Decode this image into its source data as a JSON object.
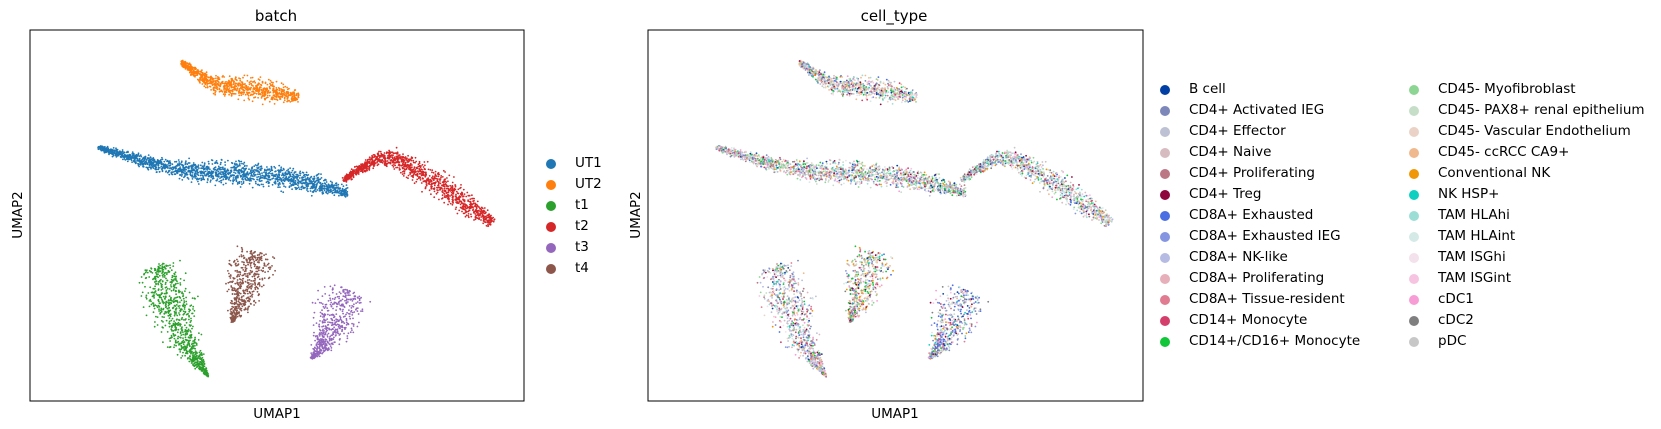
{
  "chart_data": [
    {
      "type": "scatter",
      "title": "batch",
      "xlabel": "UMAP1",
      "ylabel": "UMAP2",
      "grid": false,
      "legend_placement": "right",
      "series": [
        {
          "name": "UT1",
          "color": "#1f77b4",
          "shape": "pearl",
          "points": [
            [
              2.0,
              8.35
            ],
            [
              3.5,
              8.05
            ],
            [
              5.3,
              7.95
            ],
            [
              6.7,
              7.72
            ]
          ]
        },
        {
          "name": "UT2",
          "color": "#ff7f0e",
          "shape": "pearl",
          "points": [
            [
              3.55,
              9.55
            ],
            [
              4.25,
              9.22
            ],
            [
              4.95,
              9.18
            ],
            [
              5.75,
              9.05
            ]
          ]
        },
        {
          "name": "t1",
          "color": "#2ca02c",
          "shape": "tear",
          "points": [
            [
              3.1,
              6.7
            ],
            [
              3.5,
              5.8
            ],
            [
              4.05,
              5.15
            ]
          ]
        },
        {
          "name": "t2",
          "color": "#d62728",
          "shape": "pearl",
          "points": [
            [
              6.6,
              7.9
            ],
            [
              7.35,
              8.2
            ],
            [
              8.05,
              8.0
            ],
            [
              9.4,
              7.3
            ]
          ]
        },
        {
          "name": "t3",
          "color": "#9467bd",
          "shape": "tear",
          "points": [
            [
              6.7,
              6.35
            ],
            [
              6.25,
              5.65
            ],
            [
              6.0,
              5.4
            ]
          ]
        },
        {
          "name": "t4",
          "color": "#8c564b",
          "shape": "tear",
          "points": [
            [
              4.95,
              6.9
            ],
            [
              4.7,
              6.3
            ],
            [
              4.5,
              5.9
            ]
          ]
        }
      ]
    },
    {
      "type": "scatter",
      "title": "cell_type",
      "xlabel": "UMAP1",
      "ylabel": "UMAP2",
      "grid": false,
      "legend_placement": "right",
      "series": [
        {
          "name": "B cell",
          "color": "#023fa5"
        },
        {
          "name": "CD4+ Activated IEG",
          "color": "#7d87b9"
        },
        {
          "name": "CD4+ Effector",
          "color": "#bec1d4"
        },
        {
          "name": "CD4+ Naive",
          "color": "#d6bcc0"
        },
        {
          "name": "CD4+ Proliferating",
          "color": "#bb7784"
        },
        {
          "name": "CD4+ Treg",
          "color": "#8e063b"
        },
        {
          "name": "CD8A+ Exhausted",
          "color": "#4a6fe3"
        },
        {
          "name": "CD8A+ Exhausted IEG",
          "color": "#8595e1"
        },
        {
          "name": "CD8A+ NK-like",
          "color": "#b5bbe3"
        },
        {
          "name": "CD8A+ Proliferating",
          "color": "#e6afb9"
        },
        {
          "name": "CD8A+ Tissue-resident",
          "color": "#e07b91"
        },
        {
          "name": "CD14+ Monocyte",
          "color": "#d33f6a"
        },
        {
          "name": "CD14+/CD16+ Monocyte",
          "color": "#11c638"
        },
        {
          "name": "CD45- Myofibroblast",
          "color": "#8dd593"
        },
        {
          "name": "CD45- PAX8+ renal epithelium",
          "color": "#c6dec7"
        },
        {
          "name": "CD45- Vascular Endothelium",
          "color": "#ead3c6"
        },
        {
          "name": "CD45- ccRCC CA9+",
          "color": "#f0b98d"
        },
        {
          "name": "Conventional NK",
          "color": "#ef9708"
        },
        {
          "name": "NK HSP+",
          "color": "#0fcfc0"
        },
        {
          "name": "TAM HLAhi",
          "color": "#9cded6"
        },
        {
          "name": "TAM HLAint",
          "color": "#d5eae7"
        },
        {
          "name": "TAM ISGhi",
          "color": "#f3e1eb"
        },
        {
          "name": "TAM ISGint",
          "color": "#f6c4e1"
        },
        {
          "name": "cDC1",
          "color": "#f79cd4"
        },
        {
          "name": "cDC2",
          "color": "#7f7f7f"
        },
        {
          "name": "pDC",
          "color": "#c7c7c7"
        }
      ]
    }
  ]
}
